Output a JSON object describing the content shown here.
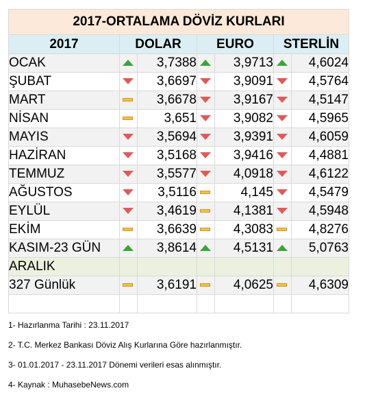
{
  "title": "2017-ORTALAMA DÖVİZ KURLARI",
  "headers": [
    "2017",
    "DOLAR",
    "EURO",
    "STERLİN"
  ],
  "colors": {
    "up": "#3ba53b",
    "down": "#e05a5a",
    "flat": "#f5c242",
    "title_bg": "#fde9d9",
    "header_bg": "#daeef3",
    "aralik_bg": "#ebf1de"
  },
  "rows": [
    {
      "label": "OCAK",
      "dolar": {
        "trend": "up",
        "value": "3,7388"
      },
      "euro": {
        "trend": "up",
        "value": "3,9713"
      },
      "sterlin": {
        "trend": "up",
        "value": "4,6024"
      }
    },
    {
      "label": "ŞUBAT",
      "dolar": {
        "trend": "down",
        "value": "3,6697"
      },
      "euro": {
        "trend": "down",
        "value": "3,9091"
      },
      "sterlin": {
        "trend": "down",
        "value": "4,5764"
      }
    },
    {
      "label": "MART",
      "dolar": {
        "trend": "flat",
        "value": "3,6678"
      },
      "euro": {
        "trend": "down",
        "value": "3,9167"
      },
      "sterlin": {
        "trend": "down",
        "value": "4,5147"
      }
    },
    {
      "label": "NİSAN",
      "dolar": {
        "trend": "flat",
        "value": "3,651"
      },
      "euro": {
        "trend": "down",
        "value": "3,9082"
      },
      "sterlin": {
        "trend": "down",
        "value": "4,5965"
      }
    },
    {
      "label": "MAYIS",
      "dolar": {
        "trend": "down",
        "value": "3,5694"
      },
      "euro": {
        "trend": "down",
        "value": "3,9391"
      },
      "sterlin": {
        "trend": "down",
        "value": "4,6059"
      }
    },
    {
      "label": "HAZİRAN",
      "dolar": {
        "trend": "down",
        "value": "3,5168"
      },
      "euro": {
        "trend": "down",
        "value": "3,9416"
      },
      "sterlin": {
        "trend": "down",
        "value": "4,4881"
      }
    },
    {
      "label": "TEMMUZ",
      "dolar": {
        "trend": "down",
        "value": "3,5577"
      },
      "euro": {
        "trend": "down",
        "value": "4,0918"
      },
      "sterlin": {
        "trend": "down",
        "value": "4,6122"
      }
    },
    {
      "label": "AĞUSTOS",
      "dolar": {
        "trend": "down",
        "value": "3,5116"
      },
      "euro": {
        "trend": "flat",
        "value": "4,145"
      },
      "sterlin": {
        "trend": "down",
        "value": "4,5479"
      }
    },
    {
      "label": "EYLÜL",
      "dolar": {
        "trend": "down",
        "value": "3,4619"
      },
      "euro": {
        "trend": "flat",
        "value": "4,1381"
      },
      "sterlin": {
        "trend": "down",
        "value": "4,5948"
      }
    },
    {
      "label": "EKİM",
      "dolar": {
        "trend": "flat",
        "value": "3,6639"
      },
      "euro": {
        "trend": "flat",
        "value": "4,3083"
      },
      "sterlin": {
        "trend": "flat",
        "value": "4,8276"
      }
    },
    {
      "label": "KASIM-23 GÜN",
      "dolar": {
        "trend": "up",
        "value": "3,8614"
      },
      "euro": {
        "trend": "up",
        "value": "4,5131"
      },
      "sterlin": {
        "trend": "up",
        "value": "5,0763"
      }
    }
  ],
  "aralik_label": "ARALIK",
  "total": {
    "label": "327 Günlük",
    "dolar": {
      "trend": "flat",
      "value": "3,6191"
    },
    "euro": {
      "trend": "flat",
      "value": "4,0625"
    },
    "sterlin": {
      "trend": "flat",
      "value": "4,6309"
    }
  },
  "notes": [
    "1- Hazırlanma Tarihi : 23.11.2017",
    "2- T.C. Merkez Bankası Döviz Alış Kurlarına Göre hazırlanmıştır.",
    "3- 01.01.2017 - 23.11.2017 Dönemi verileri esas alınmıştır.",
    "4- Kaynak : MuhasebeNews.com"
  ]
}
